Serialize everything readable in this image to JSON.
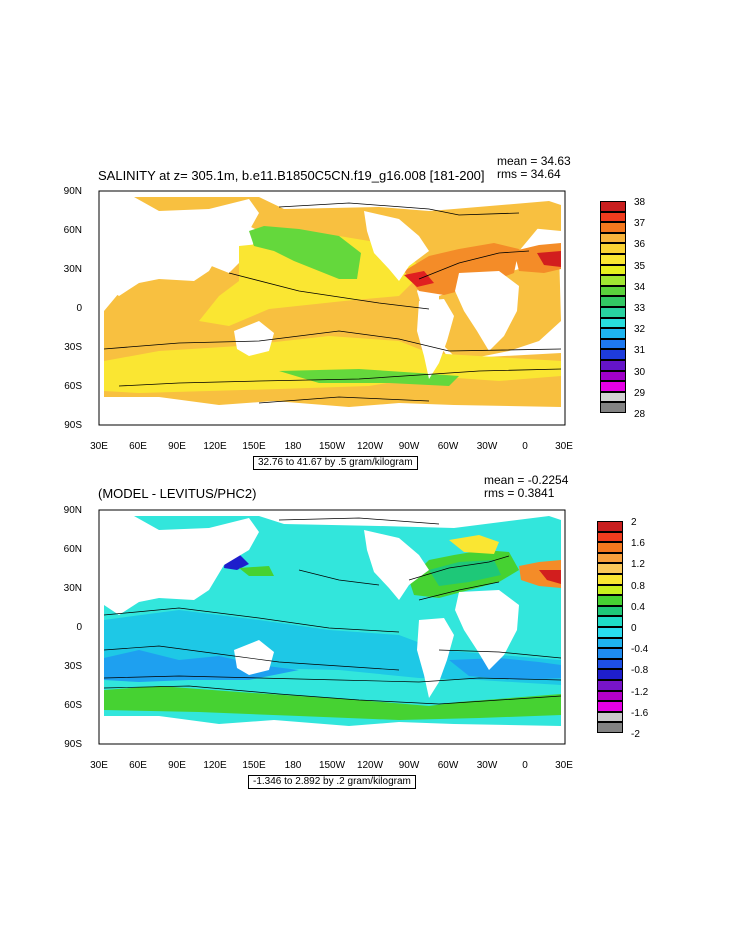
{
  "panel1": {
    "title": "SALINITY at z= 305.1m, b.e11.B1850C5CN.f19_g16.008 [181-200]",
    "mean": "mean = 34.63",
    "rms": "rms = 34.64",
    "info": "32.76 to 41.67 by .5 gram/kilogram",
    "colorbar_labels": [
      "38",
      "37",
      "36",
      "35",
      "34",
      "33",
      "32",
      "31",
      "30",
      "29",
      "28"
    ],
    "colorbar_colors": [
      "#c81e1e",
      "#f03c1e",
      "#f4781e",
      "#f8b43c",
      "#fad234",
      "#fae632",
      "#e6f01e",
      "#a0e632",
      "#5ad23c",
      "#32c864",
      "#28d2a0",
      "#28dcdc",
      "#1eb4f0",
      "#1e78f0",
      "#1e3cdc",
      "#6414c8",
      "#a000c8",
      "#e600e6",
      "#d2d2d2",
      "#828282"
    ]
  },
  "panel2": {
    "title": "(MODEL - LEVITUS/PHC2)",
    "mean": "mean = -0.2254",
    "rms": "rms = 0.3841",
    "info": "-1.346 to 2.892 by .2 gram/kilogram",
    "colorbar_labels": [
      "2",
      "1.6",
      "1.2",
      "0.8",
      "0.4",
      "0",
      "-0.4",
      "-0.8",
      "-1.2",
      "-1.6",
      "-2"
    ],
    "colorbar_colors": [
      "#c81e1e",
      "#f03c1e",
      "#f4781e",
      "#f8a03c",
      "#fac85a",
      "#fae632",
      "#c8f01e",
      "#46d232",
      "#1ec878",
      "#1edcc8",
      "#28dcf0",
      "#1eb4f0",
      "#1e8cf0",
      "#1e50e6",
      "#1e1ecc",
      "#7814c8",
      "#b400c8",
      "#e600e6",
      "#c8c8c8",
      "#828282"
    ]
  },
  "axes": {
    "lat_labels": [
      "90N",
      "60N",
      "30N",
      "0",
      "30S",
      "60S",
      "90S"
    ],
    "lon_labels": [
      "30E",
      "60E",
      "90E",
      "120E",
      "150E",
      "180",
      "150W",
      "120W",
      "90W",
      "60W",
      "30W",
      "0",
      "30E"
    ]
  }
}
